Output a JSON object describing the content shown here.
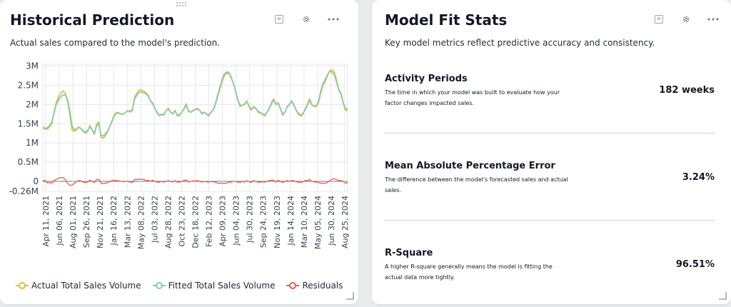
{
  "left_card": {
    "title": "Historical Prediction",
    "subtitle": "Actual sales compared to the model's prediction.",
    "tools": {
      "ai_icon": "ai-icon",
      "settings_icon": "gear-icon",
      "more_icon": "more-dots-icon"
    }
  },
  "right_card": {
    "title": "Model Fit Stats",
    "subtitle": "Key model metrics reflect predictive accuracy and consistency.",
    "metrics": [
      {
        "title": "Activity Periods",
        "description": "The time in which your model was built to evaluate how your factor changes impacted sales.",
        "value": "182 weeks"
      },
      {
        "title": "Mean Absolute Percentage Error",
        "description": "The difference between the model's forecasted sales and actual sales.",
        "value": "3.24%"
      },
      {
        "title": "R-Square",
        "description": "A higher R-square generally means the model is fitting the actual data more tightly.",
        "value": "96.51%"
      }
    ]
  },
  "colors": {
    "actual": "#f5b82e",
    "fitted": "#7fcfb2",
    "residuals": "#e8604c",
    "grid": "#e5e7eb"
  },
  "chart_data": {
    "type": "line",
    "grid": true,
    "legend_position": "bottom",
    "ylim": [
      -0.26,
      3.05
    ],
    "yticks": [
      3,
      2.5,
      2,
      1.5,
      1,
      0.5,
      0,
      -0.26
    ],
    "ytick_labels": [
      "3M",
      "2.5M",
      "2M",
      "1.5M",
      "1M",
      "0.5M",
      "0",
      "-0.26M"
    ],
    "x_tick_labels": [
      "Apr 11, 2021",
      "Jun 06, 2021",
      "Aug 01, 2021",
      "Sep 26, 2021",
      "Nov 21, 2021",
      "Jan 16, 2022",
      "Mar 13, 2022",
      "May 08, 2022",
      "Jul 03, 2022",
      "Aug 28, 2022",
      "Oct 23, 2022",
      "Dec 18, 2022",
      "Feb 12, 2023",
      "Apr 09, 2023",
      "Jun 04, 2023",
      "Jul 30, 2023",
      "Sep 24, 2023",
      "Nov 19, 2023",
      "Jan 14, 2024",
      "Mar 10, 2024",
      "May 05, 2024",
      "Jun 30, 2024",
      "Aug 25, 2024"
    ],
    "x_unit": "weeks",
    "series": [
      {
        "name": "Actual Total Sales Volume",
        "values": [
          1.42,
          1.38,
          1.36,
          1.42,
          1.5,
          1.8,
          2.05,
          2.2,
          2.3,
          2.35,
          2.3,
          2.1,
          1.75,
          1.35,
          1.3,
          1.35,
          1.42,
          1.38,
          1.3,
          1.25,
          1.3,
          1.45,
          1.35,
          1.22,
          1.5,
          1.55,
          1.15,
          1.12,
          1.2,
          1.3,
          1.45,
          1.6,
          1.75,
          1.8,
          1.78,
          1.75,
          1.75,
          1.8,
          1.85,
          1.8,
          1.85,
          2.2,
          2.3,
          2.38,
          2.38,
          2.35,
          2.3,
          2.25,
          2.1,
          2.05,
          1.9,
          1.78,
          1.7,
          1.75,
          1.72,
          1.85,
          1.9,
          1.8,
          1.75,
          1.85,
          1.7,
          1.72,
          1.8,
          1.9,
          2.02,
          1.82,
          1.8,
          1.85,
          1.88,
          1.9,
          1.85,
          1.75,
          1.8,
          1.75,
          1.7,
          1.8,
          1.85,
          2.0,
          2.2,
          2.4,
          2.6,
          2.75,
          2.8,
          2.82,
          2.7,
          2.55,
          2.35,
          2.1,
          1.95,
          1.98,
          2.0,
          2.1,
          1.95,
          1.85,
          1.95,
          1.9,
          1.8,
          1.78,
          1.75,
          1.7,
          1.8,
          1.9,
          2.05,
          2.15,
          2.0,
          2.05,
          1.9,
          1.72,
          1.8,
          1.95,
          2.0,
          2.1,
          2.0,
          1.85,
          1.75,
          1.7,
          1.75,
          1.88,
          2.0,
          2.15,
          2.0,
          1.95,
          1.95,
          2.05,
          2.3,
          2.5,
          2.6,
          2.75,
          2.88,
          2.9,
          2.85,
          2.65,
          2.4,
          2.3,
          2.05,
          1.85,
          1.85
        ]
      },
      {
        "name": "Fitted Total Sales Volume",
        "values": [
          1.4,
          1.36,
          1.4,
          1.45,
          1.55,
          1.78,
          2.0,
          2.12,
          2.2,
          2.25,
          2.25,
          2.15,
          1.85,
          1.45,
          1.35,
          1.36,
          1.4,
          1.37,
          1.32,
          1.28,
          1.32,
          1.42,
          1.35,
          1.25,
          1.45,
          1.5,
          1.2,
          1.18,
          1.25,
          1.33,
          1.45,
          1.58,
          1.72,
          1.78,
          1.77,
          1.75,
          1.76,
          1.8,
          1.84,
          1.82,
          1.88,
          2.15,
          2.25,
          2.32,
          2.33,
          2.3,
          2.28,
          2.22,
          2.1,
          2.02,
          1.9,
          1.8,
          1.72,
          1.75,
          1.74,
          1.85,
          1.88,
          1.8,
          1.77,
          1.83,
          1.72,
          1.74,
          1.8,
          1.88,
          1.98,
          1.84,
          1.8,
          1.84,
          1.87,
          1.88,
          1.85,
          1.77,
          1.8,
          1.76,
          1.72,
          1.8,
          1.86,
          2.02,
          2.25,
          2.45,
          2.65,
          2.8,
          2.85,
          2.84,
          2.72,
          2.55,
          2.35,
          2.12,
          1.98,
          1.98,
          2.02,
          2.08,
          1.96,
          1.88,
          1.93,
          1.9,
          1.82,
          1.8,
          1.76,
          1.72,
          1.8,
          1.88,
          2.02,
          2.12,
          2.02,
          2.02,
          1.9,
          1.75,
          1.8,
          1.93,
          2.0,
          2.08,
          1.98,
          1.86,
          1.77,
          1.73,
          1.76,
          1.86,
          1.98,
          2.1,
          2.0,
          1.96,
          1.97,
          2.08,
          2.35,
          2.55,
          2.65,
          2.78,
          2.86,
          2.85,
          2.78,
          2.6,
          2.38,
          2.28,
          2.05,
          1.9,
          1.88
        ]
      },
      {
        "name": "Residuals",
        "values": [
          0.02,
          0.02,
          -0.04,
          -0.03,
          -0.05,
          0.02,
          0.05,
          0.08,
          0.1,
          0.1,
          0.05,
          -0.05,
          -0.1,
          -0.1,
          -0.05,
          -0.01,
          0.02,
          0.01,
          -0.02,
          -0.03,
          -0.02,
          0.03,
          0.0,
          -0.03,
          0.05,
          0.05,
          -0.05,
          -0.06,
          -0.05,
          -0.03,
          0.0,
          0.02,
          0.03,
          0.02,
          0.01,
          0.0,
          -0.01,
          0.0,
          0.01,
          -0.02,
          -0.03,
          0.05,
          0.05,
          0.06,
          0.05,
          0.05,
          0.02,
          0.03,
          0.0,
          0.03,
          0.0,
          -0.02,
          -0.02,
          0.0,
          -0.02,
          0.0,
          0.02,
          0.0,
          -0.02,
          0.02,
          -0.02,
          -0.02,
          0.0,
          0.02,
          0.04,
          -0.02,
          0.0,
          0.01,
          0.01,
          0.02,
          0.0,
          -0.02,
          0.0,
          -0.01,
          -0.02,
          0.0,
          -0.01,
          -0.02,
          -0.05,
          -0.05,
          -0.05,
          -0.05,
          -0.05,
          -0.02,
          -0.02,
          0.0,
          0.0,
          -0.02,
          -0.03,
          0.0,
          -0.02,
          0.02,
          -0.01,
          -0.03,
          0.02,
          0.0,
          -0.02,
          -0.02,
          -0.01,
          -0.02,
          0.0,
          0.02,
          0.03,
          0.03,
          -0.02,
          0.03,
          0.0,
          -0.03,
          0.0,
          0.02,
          0.0,
          0.02,
          0.02,
          -0.01,
          -0.02,
          -0.03,
          -0.01,
          0.02,
          0.02,
          0.05,
          0.0,
          -0.01,
          -0.02,
          -0.03,
          -0.05,
          -0.05,
          -0.05,
          -0.03,
          0.02,
          0.05,
          0.07,
          0.05,
          0.02,
          0.02,
          0.0,
          -0.05,
          -0.03
        ]
      }
    ]
  }
}
